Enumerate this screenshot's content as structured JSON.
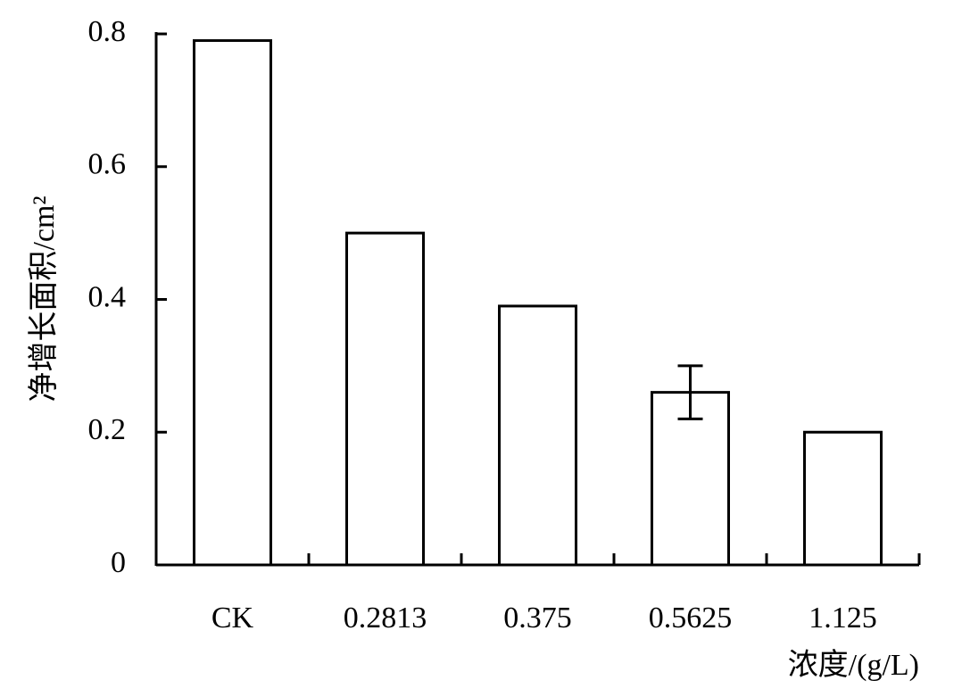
{
  "chart_data": {
    "type": "bar",
    "categories": [
      "CK",
      "0.2813",
      "0.375",
      "0.5625",
      "1.125"
    ],
    "values": [
      0.79,
      0.5,
      0.39,
      0.26,
      0.2
    ],
    "errors": [
      null,
      null,
      null,
      0.04,
      null
    ],
    "color": "#ffffff",
    "x_label": "浓度/(g/L)",
    "y_label": "净增长面积/cm²",
    "ylim": [
      0,
      0.8
    ],
    "yticks": [
      0,
      0.2,
      0.4,
      0.6,
      0.8
    ],
    "grid": false
  }
}
